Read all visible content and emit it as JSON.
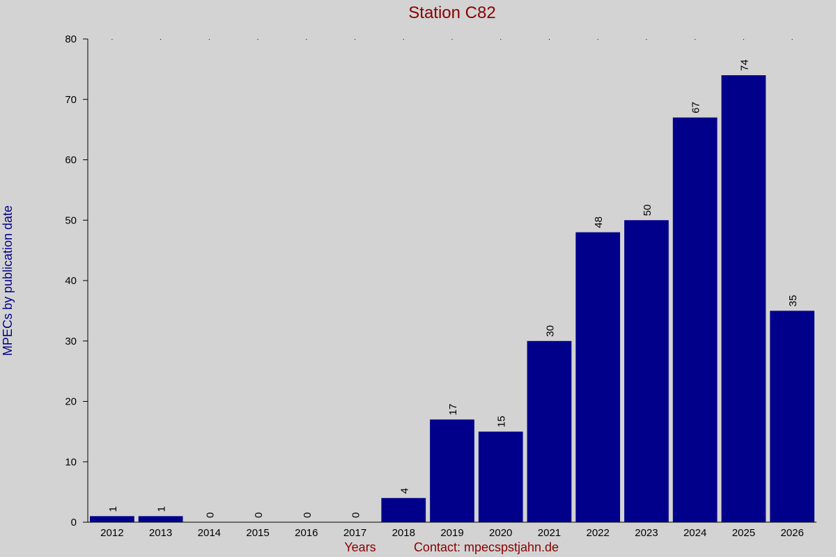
{
  "chart_data": {
    "type": "bar",
    "title": "Station C82",
    "xlabel": "Years",
    "ylabel": "MPECs by publication date",
    "footer_note": "Contact: mpecspstjahn.de",
    "categories": [
      "2012",
      "2013",
      "2014",
      "2015",
      "2016",
      "2017",
      "2018",
      "2019",
      "2020",
      "2021",
      "2022",
      "2023",
      "2024",
      "2025",
      "2026"
    ],
    "values": [
      1,
      1,
      0,
      0,
      0,
      0,
      4,
      17,
      15,
      30,
      48,
      50,
      67,
      74,
      35
    ],
    "ylim": [
      0,
      80
    ],
    "yticks": [
      0,
      10,
      20,
      30,
      40,
      50,
      60,
      70,
      80
    ],
    "grid": false,
    "legend": "none",
    "colors": {
      "background": "#d3d3d3",
      "bar": "#00008b",
      "title": "#8b0000",
      "ylabel": "#00008b",
      "xlabel": "#8b0000",
      "axis": "#000000"
    }
  }
}
